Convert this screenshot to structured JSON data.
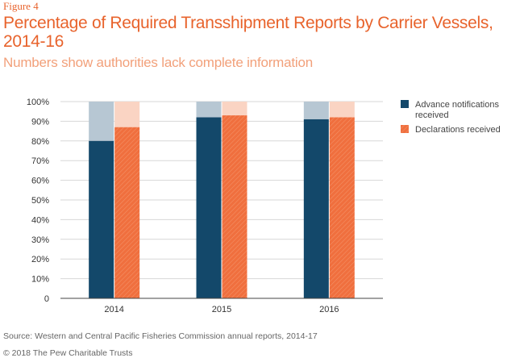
{
  "figure_label": "Figure 4",
  "title": "Percentage of Required Transshipment Reports by Carrier Vessels, 2014-16",
  "subtitle": "Numbers show authorities lack complete information",
  "source": "Source: Western and Central Pacific Fisheries Commission annual reports, 2014-17",
  "copyright": "© 2018 The Pew Charitable Trusts",
  "colors": {
    "advance": "#13486a",
    "advance_light": "#b7c7d3",
    "declarations": "#f06f3e",
    "declarations_light": "#fad4c3",
    "grid": "#d7d7d7",
    "axis": "#444444"
  },
  "chart_data": {
    "type": "bar",
    "categories": [
      "2014",
      "2015",
      "2016"
    ],
    "series": [
      {
        "name": "Advance notifications received",
        "values": [
          80,
          92,
          91
        ]
      },
      {
        "name": "Declarations received",
        "values": [
          87,
          93,
          92
        ]
      }
    ],
    "ylim": [
      0,
      100
    ],
    "yticks": [
      "0",
      "10%",
      "20%",
      "30%",
      "40%",
      "50%",
      "60%",
      "70%",
      "80%",
      "90%",
      "100%"
    ],
    "grid": true,
    "legend_position": "right"
  }
}
